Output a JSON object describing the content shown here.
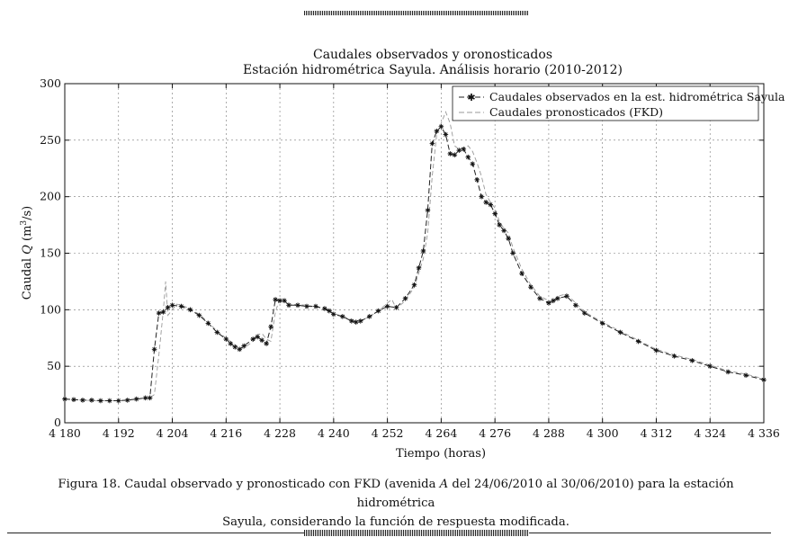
{
  "figure": {
    "caption_line1": "Figura 18. Caudal observado y pronosticado con FKD (avenida A del 24/06/2010 al 30/06/2010) para la estación hidrométrica",
    "caption_line2": "Sayula, considerando la función de respuesta modificada.",
    "caption_italic": "A"
  },
  "chart_data": {
    "type": "line",
    "title": "Caudales observados y oronosticados",
    "subtitle": "Estación hidrométrica Sayula. Análisis horario (2010-2012)",
    "xlabel": "Tiempo (horas)",
    "ylabel": "Caudal Q (m3/s)",
    "xlim": [
      4180,
      4336
    ],
    "ylim": [
      0,
      300
    ],
    "x_ticks": [
      4180,
      4192,
      4204,
      4216,
      4228,
      4240,
      4252,
      4264,
      4276,
      4288,
      4300,
      4312,
      4324,
      4336
    ],
    "x_tick_labels": [
      "4 180",
      "4 192",
      "4 204",
      "4 216",
      "4 228",
      "4 240",
      "4 252",
      "4 264",
      "4 276",
      "4 288",
      "4 300",
      "4 312",
      "4 324",
      "4 336"
    ],
    "y_ticks": [
      0,
      50,
      100,
      150,
      200,
      250,
      300
    ],
    "y_tick_labels": [
      "0",
      "50",
      "100",
      "150",
      "200",
      "250",
      "300"
    ],
    "grid": true,
    "legend_position": "top-right",
    "series": [
      {
        "name": "Caudales observados en la est. hidrométrica Sayula",
        "style": "dashed-star",
        "color": "#222222",
        "points": [
          [
            4180,
            21
          ],
          [
            4182,
            20.5
          ],
          [
            4184,
            20
          ],
          [
            4186,
            20
          ],
          [
            4188,
            19.5
          ],
          [
            4190,
            19.5
          ],
          [
            4192,
            19.5
          ],
          [
            4194,
            20
          ],
          [
            4196,
            21
          ],
          [
            4198,
            22
          ],
          [
            4199,
            22
          ],
          [
            4200,
            65
          ],
          [
            4201,
            97
          ],
          [
            4202,
            98
          ],
          [
            4203,
            102
          ],
          [
            4204,
            104
          ],
          [
            4206,
            103
          ],
          [
            4208,
            100
          ],
          [
            4210,
            95
          ],
          [
            4212,
            88
          ],
          [
            4214,
            80
          ],
          [
            4216,
            74
          ],
          [
            4217,
            70
          ],
          [
            4218,
            67
          ],
          [
            4219,
            65
          ],
          [
            4220,
            68
          ],
          [
            4222,
            74
          ],
          [
            4223,
            76
          ],
          [
            4224,
            73
          ],
          [
            4225,
            70
          ],
          [
            4226,
            85
          ],
          [
            4227,
            109
          ],
          [
            4228,
            108
          ],
          [
            4229,
            108
          ],
          [
            4230,
            104
          ],
          [
            4232,
            104
          ],
          [
            4234,
            103
          ],
          [
            4236,
            103
          ],
          [
            4238,
            101
          ],
          [
            4239,
            99
          ],
          [
            4240,
            96
          ],
          [
            4242,
            94
          ],
          [
            4244,
            90
          ],
          [
            4245,
            89
          ],
          [
            4246,
            90
          ],
          [
            4248,
            94
          ],
          [
            4250,
            99
          ],
          [
            4252,
            103
          ],
          [
            4254,
            102
          ],
          [
            4256,
            110
          ],
          [
            4258,
            122
          ],
          [
            4259,
            137
          ],
          [
            4260,
            152
          ],
          [
            4261,
            188
          ],
          [
            4262,
            247
          ],
          [
            4263,
            258
          ],
          [
            4264,
            262
          ],
          [
            4265,
            255
          ],
          [
            4266,
            238
          ],
          [
            4267,
            237
          ],
          [
            4268,
            241
          ],
          [
            4269,
            242
          ],
          [
            4270,
            235
          ],
          [
            4271,
            229
          ],
          [
            4272,
            215
          ],
          [
            4273,
            200
          ],
          [
            4274,
            195
          ],
          [
            4275,
            193
          ],
          [
            4276,
            185
          ],
          [
            4277,
            175
          ],
          [
            4278,
            170
          ],
          [
            4279,
            163
          ],
          [
            4280,
            150
          ],
          [
            4282,
            132
          ],
          [
            4284,
            120
          ],
          [
            4286,
            110
          ],
          [
            4288,
            106
          ],
          [
            4289,
            108
          ],
          [
            4290,
            110
          ],
          [
            4292,
            112
          ],
          [
            4294,
            104
          ],
          [
            4296,
            97
          ],
          [
            4300,
            88
          ],
          [
            4304,
            80
          ],
          [
            4308,
            72
          ],
          [
            4312,
            64
          ],
          [
            4316,
            59
          ],
          [
            4320,
            55
          ],
          [
            4324,
            50
          ],
          [
            4328,
            45
          ],
          [
            4332,
            42
          ],
          [
            4336,
            38
          ]
        ]
      },
      {
        "name": "Caudales pronosticados (FKD)",
        "style": "dashed",
        "color": "#999999",
        "points": [
          [
            4180,
            21
          ],
          [
            4184,
            20
          ],
          [
            4188,
            19.5
          ],
          [
            4192,
            19.5
          ],
          [
            4196,
            21
          ],
          [
            4199,
            22
          ],
          [
            4200,
            25
          ],
          [
            4201,
            60
          ],
          [
            4202,
            100
          ],
          [
            4202.5,
            125
          ],
          [
            4203,
            95
          ],
          [
            4204,
            100
          ],
          [
            4205,
            105
          ],
          [
            4206,
            104
          ],
          [
            4208,
            101
          ],
          [
            4210,
            96
          ],
          [
            4212,
            89
          ],
          [
            4214,
            81
          ],
          [
            4216,
            75
          ],
          [
            4218,
            69
          ],
          [
            4219,
            66
          ],
          [
            4220,
            66
          ],
          [
            4222,
            72
          ],
          [
            4223,
            78
          ],
          [
            4224,
            79
          ],
          [
            4225,
            74
          ],
          [
            4226,
            72
          ],
          [
            4227,
            98
          ],
          [
            4228,
            110
          ],
          [
            4229,
            109
          ],
          [
            4230,
            105
          ],
          [
            4234,
            104
          ],
          [
            4238,
            101
          ],
          [
            4240,
            97
          ],
          [
            4244,
            91
          ],
          [
            4246,
            90
          ],
          [
            4248,
            94
          ],
          [
            4250,
            99
          ],
          [
            4252,
            106
          ],
          [
            4253,
            109
          ],
          [
            4254,
            101
          ],
          [
            4256,
            108
          ],
          [
            4258,
            120
          ],
          [
            4260,
            145
          ],
          [
            4261,
            168
          ],
          [
            4262,
            218
          ],
          [
            4263,
            255
          ],
          [
            4264,
            265
          ],
          [
            4265,
            275
          ],
          [
            4266,
            265
          ],
          [
            4267,
            245
          ],
          [
            4268,
            242
          ],
          [
            4270,
            245
          ],
          [
            4271,
            240
          ],
          [
            4272,
            230
          ],
          [
            4273,
            218
          ],
          [
            4274,
            202
          ],
          [
            4275,
            195
          ],
          [
            4276,
            190
          ],
          [
            4277,
            178
          ],
          [
            4278,
            172
          ],
          [
            4279,
            168
          ],
          [
            4280,
            155
          ],
          [
            4282,
            136
          ],
          [
            4284,
            122
          ],
          [
            4286,
            112
          ],
          [
            4288,
            108
          ],
          [
            4289,
            106
          ],
          [
            4290,
            112
          ],
          [
            4292,
            114
          ],
          [
            4293,
            110
          ],
          [
            4294,
            106
          ],
          [
            4296,
            98
          ],
          [
            4300,
            89
          ],
          [
            4304,
            81
          ],
          [
            4308,
            73
          ],
          [
            4312,
            65
          ],
          [
            4316,
            60
          ],
          [
            4320,
            56
          ],
          [
            4324,
            51
          ],
          [
            4328,
            46
          ],
          [
            4332,
            43
          ],
          [
            4336,
            39
          ]
        ]
      }
    ]
  }
}
